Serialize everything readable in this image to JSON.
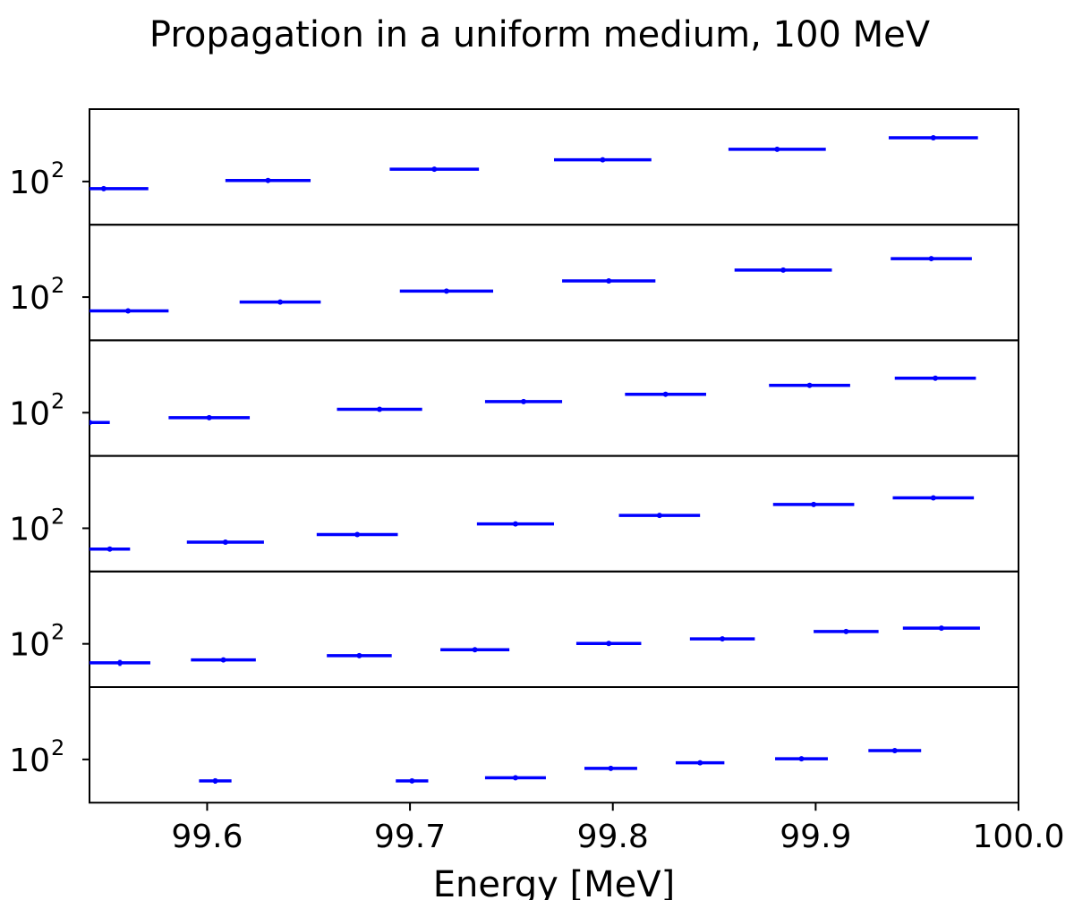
{
  "chart_data": {
    "type": "scatter",
    "title": "Propagation in a uniform medium, 100 MeV",
    "xlabel": "Energy [MeV]",
    "ylabel": "",
    "xlim": [
      99.542,
      100.0
    ],
    "x_ticks": [
      "99.6",
      "99.7",
      "99.8",
      "99.9",
      "100.0"
    ],
    "x_tick_values": [
      99.6,
      99.7,
      99.8,
      99.9,
      100.0
    ],
    "y_scale": "log",
    "y_tick_base": "10",
    "y_tick_exp": "2",
    "y_tick_value": 100,
    "ylim": [
      30,
      750
    ],
    "marker": "horizontal bar with vertical error bar",
    "color": "#0000ff",
    "grid": false,
    "legend": "none",
    "panels": [
      {
        "points": [
          {
            "x": 99.549,
            "xerr": 0.022,
            "y": 82,
            "yerr": 3
          },
          {
            "x": 99.63,
            "xerr": 0.021,
            "y": 103,
            "yerr": 3
          },
          {
            "x": 99.712,
            "xerr": 0.022,
            "y": 141,
            "yerr": 3
          },
          {
            "x": 99.795,
            "xerr": 0.024,
            "y": 183,
            "yerr": 3
          },
          {
            "x": 99.881,
            "xerr": 0.024,
            "y": 245,
            "yerr": 4
          },
          {
            "x": 99.958,
            "xerr": 0.022,
            "y": 338,
            "yerr": 5
          }
        ]
      },
      {
        "points": [
          {
            "x": 99.561,
            "xerr": 0.02,
            "y": 68,
            "yerr": 3
          },
          {
            "x": 99.636,
            "xerr": 0.02,
            "y": 87,
            "yerr": 3
          },
          {
            "x": 99.718,
            "xerr": 0.023,
            "y": 118,
            "yerr": 3
          },
          {
            "x": 99.798,
            "xerr": 0.023,
            "y": 157,
            "yerr": 3
          },
          {
            "x": 99.884,
            "xerr": 0.024,
            "y": 212,
            "yerr": 4
          },
          {
            "x": 99.957,
            "xerr": 0.02,
            "y": 292,
            "yerr": 5
          }
        ]
      },
      {
        "points": [
          {
            "x": 99.542,
            "xerr": 0.01,
            "y": 76,
            "yerr": 3
          },
          {
            "x": 99.601,
            "xerr": 0.02,
            "y": 87,
            "yerr": 3
          },
          {
            "x": 99.685,
            "xerr": 0.021,
            "y": 110,
            "yerr": 3
          },
          {
            "x": 99.756,
            "xerr": 0.019,
            "y": 136,
            "yerr": 3
          },
          {
            "x": 99.826,
            "xerr": 0.02,
            "y": 167,
            "yerr": 3
          },
          {
            "x": 99.897,
            "xerr": 0.02,
            "y": 214,
            "yerr": 4
          },
          {
            "x": 99.959,
            "xerr": 0.02,
            "y": 261,
            "yerr": 5
          }
        ]
      },
      {
        "points": [
          {
            "x": 99.552,
            "xerr": 0.01,
            "y": 56,
            "yerr": 3
          },
          {
            "x": 99.609,
            "xerr": 0.019,
            "y": 68,
            "yerr": 3
          },
          {
            "x": 99.674,
            "xerr": 0.02,
            "y": 84,
            "yerr": 3
          },
          {
            "x": 99.752,
            "xerr": 0.019,
            "y": 113,
            "yerr": 3
          },
          {
            "x": 99.823,
            "xerr": 0.02,
            "y": 143,
            "yerr": 3
          },
          {
            "x": 99.899,
            "xerr": 0.02,
            "y": 194,
            "yerr": 4
          },
          {
            "x": 99.958,
            "xerr": 0.02,
            "y": 233,
            "yerr": 5
          }
        ]
      },
      {
        "points": [
          {
            "x": 99.557,
            "xerr": 0.015,
            "y": 59,
            "yerr": 5
          },
          {
            "x": 99.608,
            "xerr": 0.016,
            "y": 64,
            "yerr": 3
          },
          {
            "x": 99.675,
            "xerr": 0.016,
            "y": 72,
            "yerr": 3
          },
          {
            "x": 99.732,
            "xerr": 0.017,
            "y": 85,
            "yerr": 3
          },
          {
            "x": 99.798,
            "xerr": 0.016,
            "y": 101,
            "yerr": 3
          },
          {
            "x": 99.854,
            "xerr": 0.016,
            "y": 115,
            "yerr": 3
          },
          {
            "x": 99.915,
            "xerr": 0.016,
            "y": 141,
            "yerr": 4
          },
          {
            "x": 99.962,
            "xerr": 0.019,
            "y": 155,
            "yerr": 4
          }
        ]
      },
      {
        "points": [
          {
            "x": 99.604,
            "xerr": 0.008,
            "y": 55,
            "yerr": 4
          },
          {
            "x": 99.701,
            "xerr": 0.008,
            "y": 55,
            "yerr": 3
          },
          {
            "x": 99.752,
            "xerr": 0.015,
            "y": 60,
            "yerr": 3
          },
          {
            "x": 99.799,
            "xerr": 0.013,
            "y": 78,
            "yerr": 3
          },
          {
            "x": 99.843,
            "xerr": 0.012,
            "y": 91,
            "yerr": 3
          },
          {
            "x": 99.893,
            "xerr": 0.013,
            "y": 102,
            "yerr": 3
          },
          {
            "x": 99.939,
            "xerr": 0.013,
            "y": 128,
            "yerr": 4
          }
        ]
      }
    ]
  }
}
